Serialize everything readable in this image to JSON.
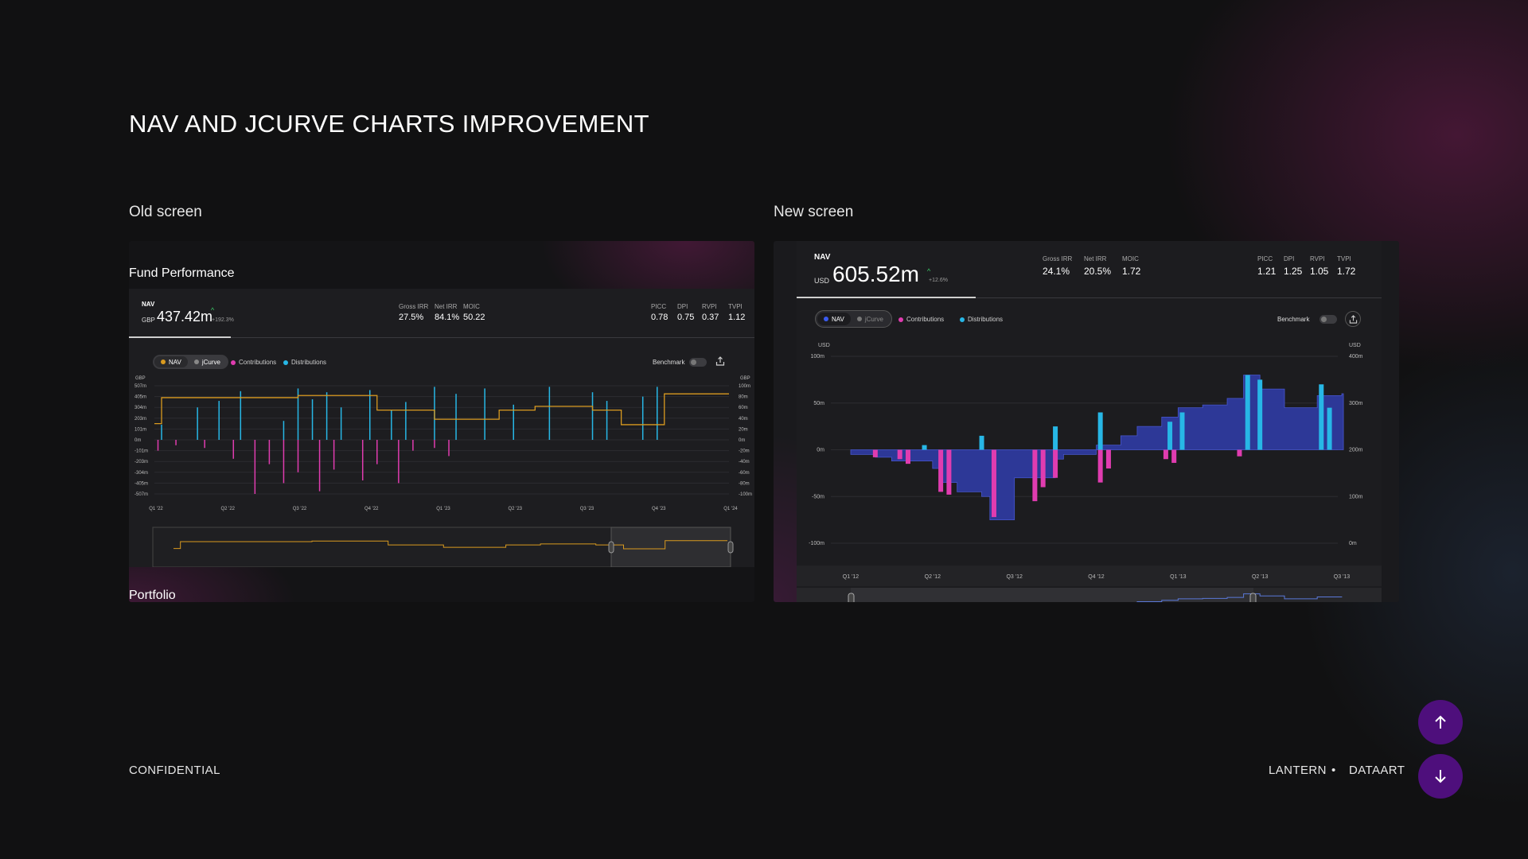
{
  "page": {
    "title": "NAV AND JCURVE CHARTS IMPROVEMENT",
    "old_label": "Old screen",
    "new_label": "New screen",
    "footer_left": "CONFIDENTIAL",
    "footer_brand_1": "LANTERN",
    "footer_sep": "•",
    "footer_brand_2": "DATAART"
  },
  "colors": {
    "nav_line": "#d99a1f",
    "contributions": "#e03cb0",
    "distributions": "#27b7e6",
    "nav_area": "#2e3a9e",
    "accent_purple": "#4e0f7c",
    "positive": "#3ccf6a"
  },
  "icons": {
    "export": "export-icon",
    "scroll_up": "arrow-up-icon",
    "scroll_down": "arrow-down-icon"
  },
  "old_screen": {
    "section_title": "Fund Performance",
    "next_section": "Portfolio",
    "nav_label": "NAV",
    "currency": "GBP",
    "nav_value": "437.42m",
    "nav_change": "+192.3%",
    "stats_mid": [
      {
        "label": "Gross IRR",
        "value": "27.5%"
      },
      {
        "label": "Net IRR",
        "value": "84.1%"
      },
      {
        "label": "MOIC",
        "value": "50.22"
      }
    ],
    "stats_right": [
      {
        "label": "PICC",
        "value": "0.78"
      },
      {
        "label": "DPI",
        "value": "0.75"
      },
      {
        "label": "RVPI",
        "value": "0.37"
      },
      {
        "label": "TVPI",
        "value": "1.12"
      }
    ],
    "toggle_nav": "NAV",
    "toggle_jcurve": "jCurve",
    "legend_contrib": "Contributions",
    "legend_dist": "Distributions",
    "benchmark": "Benchmark"
  },
  "new_screen": {
    "nav_label": "NAV",
    "currency": "USD",
    "nav_value": "605.52m",
    "nav_change": "+12.6%",
    "stats_mid": [
      {
        "label": "Gross IRR",
        "value": "24.1%"
      },
      {
        "label": "Net IRR",
        "value": "20.5%"
      },
      {
        "label": "MOIC",
        "value": "1.72"
      }
    ],
    "stats_right": [
      {
        "label": "PICC",
        "value": "1.21"
      },
      {
        "label": "DPI",
        "value": "1.25"
      },
      {
        "label": "RVPI",
        "value": "1.05"
      },
      {
        "label": "TVPI",
        "value": "1.72"
      }
    ],
    "toggle_nav": "NAV",
    "toggle_jcurve": "jCurve",
    "legend_contrib": "Contributions",
    "legend_dist": "Distributions",
    "benchmark": "Benchmark"
  },
  "chart_data": [
    {
      "type": "bar",
      "title": "",
      "left_axis_unit": "GBP",
      "right_axis_unit": "GBP",
      "y_left_ticks": [
        "507m",
        "405m",
        "304m",
        "203m",
        "101m",
        "0m",
        "-101m",
        "-203m",
        "-304m",
        "-405m",
        "-507m"
      ],
      "y_right_ticks": [
        "100m",
        "80m",
        "60m",
        "40m",
        "20m",
        "0m",
        "-20m",
        "-40m",
        "-60m",
        "-80m",
        "-100m"
      ],
      "x_ticks": [
        "Q1 '22",
        "Q2 '22",
        "Q3 '22",
        "Q4 '22",
        "Q1 '23",
        "Q2 '23",
        "Q3 '23",
        "Q4 '23",
        "Q1 '24"
      ],
      "x_range": [
        0,
        8
      ],
      "y_range_right": [
        -100,
        100
      ],
      "nav_step": {
        "name": "NAV",
        "x": [
          0,
          0.1,
          1.2,
          2.0,
          3.0,
          3.1,
          3.9,
          4.8,
          5.3,
          6.0,
          6.1,
          6.5,
          7.0,
          7.1,
          8.0
        ],
        "y": [
          30,
          78,
          78,
          82,
          82,
          55,
          38,
          55,
          62,
          62,
          55,
          28,
          28,
          85,
          85
        ]
      },
      "distributions": {
        "x": [
          0.1,
          0.6,
          0.9,
          1.2,
          1.8,
          2.0,
          2.2,
          2.4,
          2.6,
          3.0,
          3.3,
          3.5,
          3.9,
          4.2,
          4.6,
          5.0,
          5.5,
          6.1,
          6.3,
          6.8,
          7.0
        ],
        "values": [
          28,
          60,
          72,
          90,
          35,
          95,
          75,
          88,
          60,
          92,
          55,
          70,
          98,
          85,
          95,
          65,
          98,
          88,
          72,
          80,
          98
        ]
      },
      "contributions": {
        "x": [
          0.05,
          0.3,
          0.7,
          1.1,
          1.4,
          1.6,
          1.8,
          2.0,
          2.3,
          2.5,
          2.9,
          3.1,
          3.4,
          3.6,
          3.9,
          4.1
        ],
        "values": [
          -20,
          -10,
          -15,
          -35,
          -100,
          -45,
          -80,
          -60,
          -95,
          -55,
          -75,
          -45,
          -80,
          -20,
          -15,
          -30
        ]
      },
      "grid": true
    },
    {
      "type": "bar",
      "title": "",
      "left_axis_unit": "USD",
      "right_axis_unit": "USD",
      "y_left_ticks": [
        "100m",
        "50m",
        "0m",
        "-50m",
        "-100m"
      ],
      "y_right_ticks": [
        "400m",
        "300m",
        "200m",
        "100m",
        "0m"
      ],
      "x_ticks": [
        "Q1 '12",
        "Q2 '12",
        "Q3 '12",
        "Q4 '12",
        "Q1 '13",
        "Q2 '13",
        "Q3 '13"
      ],
      "y_range_left": [
        -100,
        100
      ],
      "nav_area": {
        "name": "NAV",
        "x": [
          0,
          0.3,
          0.5,
          1.0,
          1.1,
          1.3,
          1.6,
          1.7,
          2.0,
          2.5,
          2.6,
          3.0,
          3.3,
          3.5,
          3.8,
          4.0,
          4.3,
          4.6,
          4.8,
          5.0,
          5.3,
          5.7,
          6.0
        ],
        "y": [
          -5,
          -8,
          -12,
          -20,
          -35,
          -45,
          -50,
          -75,
          -30,
          -10,
          -5,
          5,
          15,
          25,
          35,
          45,
          48,
          55,
          80,
          65,
          45,
          58,
          60
        ]
      },
      "distributions": {
        "x": [
          0.9,
          1.6,
          2.5,
          3.05,
          3.9,
          4.05,
          4.85,
          5.0,
          5.75,
          5.85
        ],
        "values": [
          5,
          15,
          25,
          40,
          30,
          40,
          80,
          75,
          70,
          45
        ]
      },
      "contributions": {
        "x": [
          0.3,
          0.6,
          0.7,
          1.1,
          1.2,
          1.75,
          2.25,
          2.35,
          2.5,
          3.05,
          3.15,
          3.85,
          3.95,
          4.75
        ],
        "values": [
          -8,
          -10,
          -15,
          -45,
          -48,
          -72,
          -55,
          -40,
          -30,
          -35,
          -20,
          -10,
          -14,
          -7
        ]
      },
      "grid": true
    }
  ]
}
